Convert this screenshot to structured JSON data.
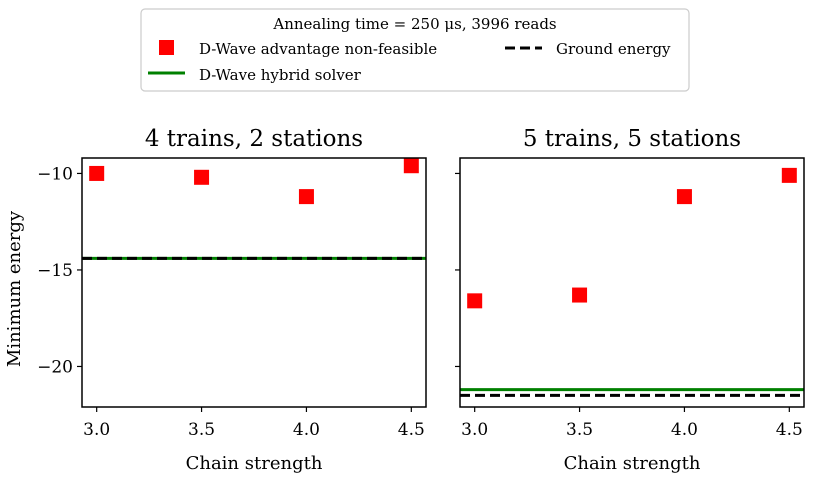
{
  "legend": {
    "title": "Annealing time = 250 μs, 3996 reads",
    "entries": [
      {
        "label": "D-Wave advantage non-feasible",
        "marker": "square",
        "color": "#ff0000"
      },
      {
        "label": "Ground energy",
        "marker": "dashed-line",
        "color": "#000000"
      },
      {
        "label": "D-Wave hybrid solver",
        "marker": "line",
        "color": "#008000"
      }
    ]
  },
  "chart_data": [
    {
      "type": "scatter",
      "title": "4 trains, 2 stations",
      "xlabel": "Chain strength",
      "ylabel": "Minimum energy",
      "xlim": [
        2.93,
        4.57
      ],
      "ylim": [
        -22.1,
        -9.2
      ],
      "xticks": [
        3.0,
        3.5,
        4.0,
        4.5
      ],
      "xtick_labels": [
        "3.0",
        "3.5",
        "4.0",
        "4.5"
      ],
      "yticks": [
        -10,
        -15,
        -20
      ],
      "ytick_labels": [
        "−10",
        "−15",
        "−20"
      ],
      "series": [
        {
          "name": "D-Wave advantage non-feasible",
          "x": [
            3.0,
            3.5,
            4.0,
            4.5
          ],
          "y": [
            -10.0,
            -10.2,
            -11.2,
            -9.6
          ]
        }
      ],
      "hlines": [
        {
          "name": "D-Wave hybrid solver",
          "y": -14.4
        },
        {
          "name": "Ground energy",
          "y": -14.4
        }
      ]
    },
    {
      "type": "scatter",
      "title": "5 trains, 5 stations",
      "xlabel": "Chain strength",
      "ylabel": "",
      "xlim": [
        2.93,
        4.57
      ],
      "ylim": [
        -22.1,
        -9.2
      ],
      "xticks": [
        3.0,
        3.5,
        4.0,
        4.5
      ],
      "xtick_labels": [
        "3.0",
        "3.5",
        "4.0",
        "4.5"
      ],
      "yticks": [
        -10,
        -15,
        -20
      ],
      "ytick_labels": [
        "",
        "",
        ""
      ],
      "series": [
        {
          "name": "D-Wave advantage non-feasible",
          "x": [
            3.0,
            3.5,
            4.0,
            4.5
          ],
          "y": [
            -16.6,
            -16.3,
            -11.2,
            -10.1
          ]
        }
      ],
      "hlines": [
        {
          "name": "D-Wave hybrid solver",
          "y": -21.2
        },
        {
          "name": "Ground energy",
          "y": -21.5
        }
      ]
    }
  ]
}
